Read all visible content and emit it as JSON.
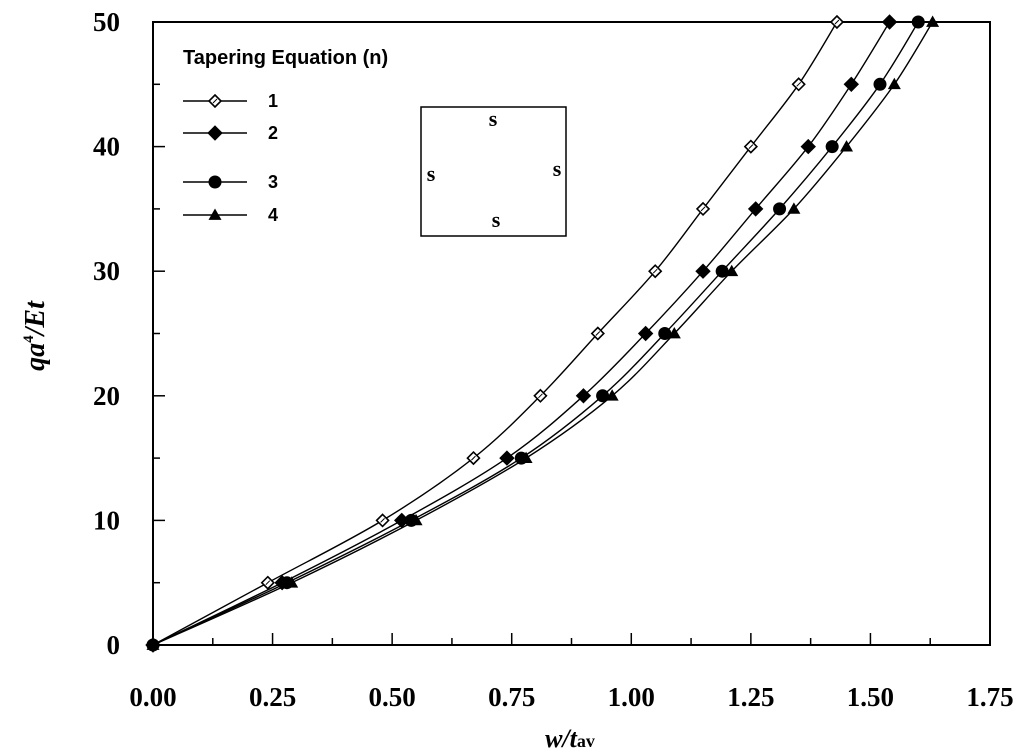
{
  "chart_data": {
    "type": "line",
    "title": "",
    "xlabel_main": "w/t",
    "xlabel_sub": "av",
    "ylabel_main": "qa",
    "ylabel_sup": "4",
    "ylabel_tail": "/Et",
    "xlim": [
      0,
      1.75
    ],
    "ylim": [
      0,
      50
    ],
    "x_ticks": [
      "0.00",
      "0.25",
      "0.50",
      "0.75",
      "1.00",
      "1.25",
      "1.50",
      "1.75"
    ],
    "y_ticks": [
      "0",
      "10",
      "20",
      "30",
      "40",
      "50"
    ],
    "x_tick_values": [
      0,
      0.25,
      0.5,
      0.75,
      1.0,
      1.25,
      1.5,
      1.75
    ],
    "y_tick_values": [
      0,
      10,
      20,
      30,
      40,
      50
    ],
    "grid": false,
    "legend": {
      "title": "Tapering Equation (n)",
      "placement": "top-left"
    },
    "inset": {
      "top": "s",
      "left": "s",
      "right": "s",
      "bottom": "s"
    },
    "series": [
      {
        "name": "1",
        "marker": "diamond-open",
        "x": [
          0,
          0.24,
          0.48,
          0.67,
          0.81,
          0.93,
          1.05,
          1.15,
          1.25,
          1.35,
          1.43
        ],
        "y": [
          0,
          5,
          10,
          15,
          20,
          25,
          30,
          35,
          40,
          45,
          50
        ]
      },
      {
        "name": "2",
        "marker": "diamond-filled",
        "x": [
          0,
          0.27,
          0.52,
          0.74,
          0.9,
          1.03,
          1.15,
          1.26,
          1.37,
          1.46,
          1.54
        ],
        "y": [
          0,
          5,
          10,
          15,
          20,
          25,
          30,
          35,
          40,
          45,
          50
        ]
      },
      {
        "name": "3",
        "marker": "circle-filled",
        "x": [
          0,
          0.28,
          0.54,
          0.77,
          0.94,
          1.07,
          1.19,
          1.31,
          1.42,
          1.52,
          1.6
        ],
        "y": [
          0,
          5,
          10,
          15,
          20,
          25,
          30,
          35,
          40,
          45,
          50
        ]
      },
      {
        "name": "4",
        "marker": "triangle-filled",
        "x": [
          0,
          0.29,
          0.55,
          0.78,
          0.96,
          1.09,
          1.21,
          1.34,
          1.45,
          1.55,
          1.63
        ],
        "y": [
          0,
          5,
          10,
          15,
          20,
          25,
          30,
          35,
          40,
          45,
          50
        ]
      }
    ]
  }
}
